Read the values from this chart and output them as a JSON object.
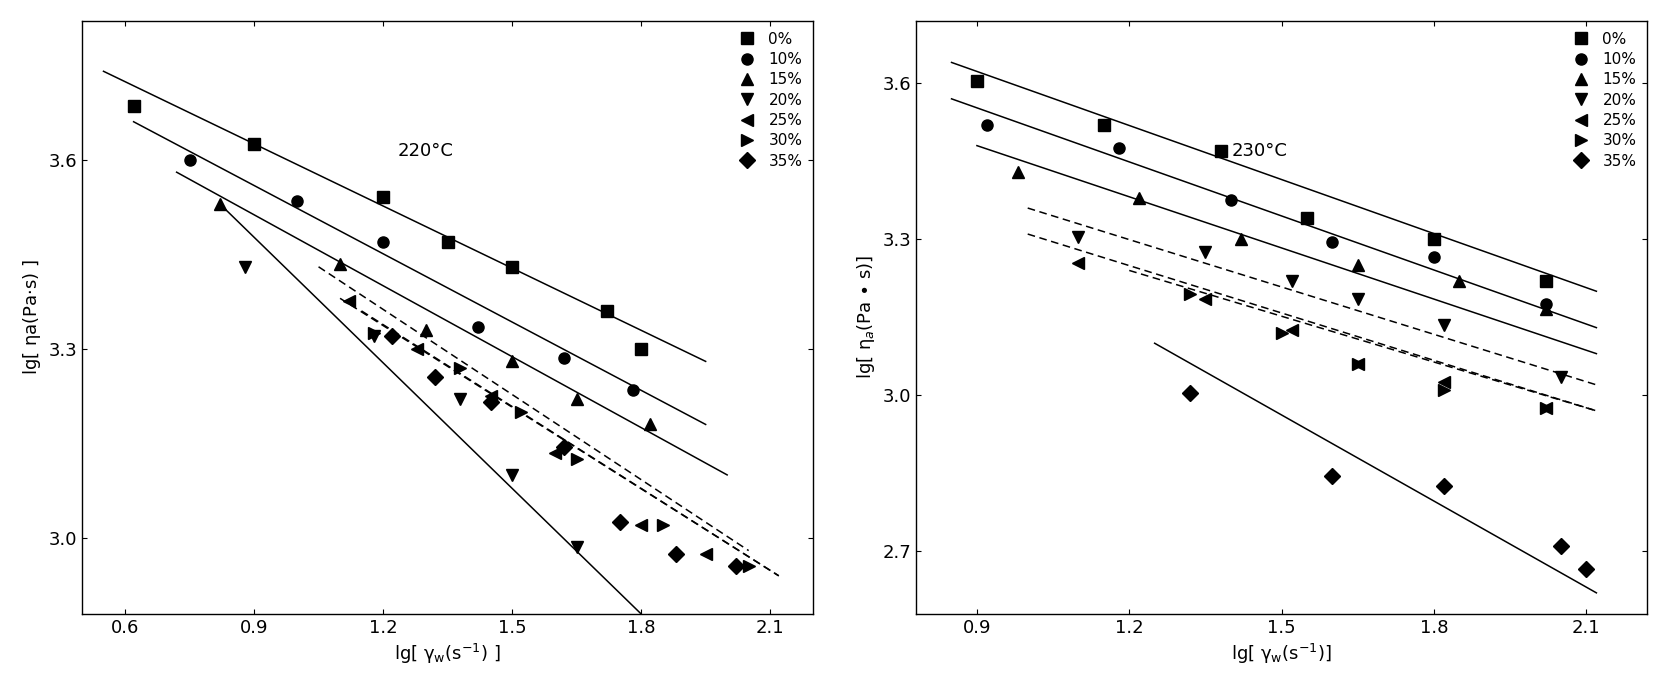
{
  "plot1": {
    "title": "220°C",
    "xlabel": "lg[ γw(s⁻¹) ]",
    "ylabel": "lg[ ηa(Pa·s) ]",
    "xlim": [
      0.5,
      2.2
    ],
    "ylim": [
      2.88,
      3.82
    ],
    "xticks": [
      0.6,
      0.9,
      1.2,
      1.5,
      1.8,
      2.1
    ],
    "yticks": [
      3.0,
      3.3,
      3.6
    ],
    "series": [
      {
        "label": "0%",
        "marker": "s",
        "points": [
          [
            0.62,
            3.685
          ],
          [
            0.9,
            3.625
          ],
          [
            1.2,
            3.54
          ],
          [
            1.35,
            3.47
          ],
          [
            1.5,
            3.43
          ],
          [
            1.72,
            3.36
          ],
          [
            1.8,
            3.3
          ]
        ],
        "line_x": [
          0.55,
          1.95
        ],
        "line_y": [
          3.74,
          3.28
        ],
        "linestyle": "solid"
      },
      {
        "label": "10%",
        "marker": "o",
        "points": [
          [
            0.75,
            3.6
          ],
          [
            1.0,
            3.535
          ],
          [
            1.2,
            3.47
          ],
          [
            1.42,
            3.335
          ],
          [
            1.62,
            3.285
          ],
          [
            1.78,
            3.235
          ]
        ],
        "line_x": [
          0.62,
          1.95
        ],
        "line_y": [
          3.66,
          3.18
        ],
        "linestyle": "solid"
      },
      {
        "label": "15%",
        "marker": "^",
        "points": [
          [
            0.82,
            3.53
          ],
          [
            1.1,
            3.435
          ],
          [
            1.3,
            3.33
          ],
          [
            1.5,
            3.28
          ],
          [
            1.65,
            3.22
          ],
          [
            1.82,
            3.18
          ]
        ],
        "line_x": [
          0.72,
          2.0
        ],
        "line_y": [
          3.58,
          3.1
        ],
        "linestyle": "solid"
      },
      {
        "label": "20%",
        "marker": "v",
        "points": [
          [
            0.88,
            3.43
          ],
          [
            1.18,
            3.32
          ],
          [
            1.38,
            3.22
          ],
          [
            1.5,
            3.1
          ],
          [
            1.65,
            2.985
          ],
          [
            1.85,
            2.82
          ]
        ],
        "line_x": [
          0.82,
          1.95
        ],
        "line_y": [
          3.53,
          2.78
        ],
        "linestyle": "solid"
      },
      {
        "label": "25%",
        "marker": "<",
        "points": [
          [
            1.12,
            3.375
          ],
          [
            1.28,
            3.3
          ],
          [
            1.45,
            3.225
          ],
          [
            1.6,
            3.135
          ],
          [
            1.8,
            3.02
          ],
          [
            1.95,
            2.975
          ]
        ],
        "line_x": [
          1.05,
          2.05
        ],
        "line_y": [
          3.43,
          2.98
        ],
        "linestyle": "dotted"
      },
      {
        "label": "30%",
        "marker": ">",
        "points": [
          [
            1.18,
            3.325
          ],
          [
            1.38,
            3.27
          ],
          [
            1.52,
            3.2
          ],
          [
            1.65,
            3.125
          ],
          [
            1.85,
            3.02
          ],
          [
            2.05,
            2.955
          ]
        ],
        "line_x": [
          1.1,
          2.12
        ],
        "line_y": [
          3.38,
          2.94
        ],
        "linestyle": "dotted"
      },
      {
        "label": "35%",
        "marker": "D",
        "points": [
          [
            1.22,
            3.32
          ],
          [
            1.32,
            3.255
          ],
          [
            1.45,
            3.215
          ],
          [
            1.62,
            3.145
          ],
          [
            1.75,
            3.025
          ],
          [
            1.88,
            2.975
          ],
          [
            2.02,
            2.955
          ]
        ],
        "line_x": [
          1.15,
          2.12
        ],
        "line_y": [
          3.36,
          2.94
        ],
        "linestyle": "dotted"
      }
    ]
  },
  "plot2": {
    "title": "230°C",
    "xlabel": "lg[ γw(s⁻¹)]",
    "ylabel": "lg[ ηa(Pa • s)]",
    "xlim": [
      0.78,
      2.22
    ],
    "ylim": [
      2.58,
      3.72
    ],
    "xticks": [
      0.9,
      1.2,
      1.5,
      1.8,
      2.1
    ],
    "yticks": [
      2.7,
      3.0,
      3.3,
      3.6
    ],
    "series": [
      {
        "label": "0%",
        "marker": "s",
        "points": [
          [
            0.9,
            3.605
          ],
          [
            1.15,
            3.52
          ],
          [
            1.38,
            3.47
          ],
          [
            1.55,
            3.34
          ],
          [
            1.8,
            3.3
          ],
          [
            2.02,
            3.22
          ]
        ],
        "line_x": [
          0.85,
          2.12
        ],
        "line_y": [
          3.64,
          3.2
        ],
        "linestyle": "solid"
      },
      {
        "label": "10%",
        "marker": "o",
        "points": [
          [
            0.92,
            3.52
          ],
          [
            1.18,
            3.475
          ],
          [
            1.4,
            3.375
          ],
          [
            1.6,
            3.295
          ],
          [
            1.8,
            3.265
          ],
          [
            2.02,
            3.175
          ]
        ],
        "line_x": [
          0.85,
          2.12
        ],
        "line_y": [
          3.57,
          3.13
        ],
        "linestyle": "solid"
      },
      {
        "label": "15%",
        "marker": "^",
        "points": [
          [
            0.98,
            3.43
          ],
          [
            1.22,
            3.38
          ],
          [
            1.42,
            3.3
          ],
          [
            1.65,
            3.25
          ],
          [
            1.85,
            3.22
          ],
          [
            2.02,
            3.165
          ]
        ],
        "line_x": [
          0.9,
          2.12
        ],
        "line_y": [
          3.48,
          3.08
        ],
        "linestyle": "solid"
      },
      {
        "label": "20%",
        "marker": "v",
        "points": [
          [
            1.1,
            3.305
          ],
          [
            1.35,
            3.275
          ],
          [
            1.52,
            3.22
          ],
          [
            1.65,
            3.185
          ],
          [
            1.82,
            3.135
          ],
          [
            2.05,
            3.035
          ]
        ],
        "line_x": [
          1.0,
          2.12
        ],
        "line_y": [
          3.36,
          3.02
        ],
        "linestyle": "dotted"
      },
      {
        "label": "25%",
        "marker": "<",
        "points": [
          [
            1.1,
            3.255
          ],
          [
            1.35,
            3.185
          ],
          [
            1.52,
            3.125
          ],
          [
            1.65,
            3.06
          ],
          [
            1.82,
            3.025
          ],
          [
            2.02,
            2.975
          ]
        ],
        "line_x": [
          1.0,
          2.12
        ],
        "line_y": [
          3.31,
          2.97
        ],
        "linestyle": "dotted"
      },
      {
        "label": "30%",
        "marker": ">",
        "points": [
          [
            1.32,
            3.195
          ],
          [
            1.5,
            3.12
          ],
          [
            1.65,
            3.06
          ],
          [
            1.82,
            3.01
          ],
          [
            2.02,
            2.975
          ]
        ],
        "line_x": [
          1.2,
          2.12
        ],
        "line_y": [
          3.24,
          2.97
        ],
        "linestyle": "dotted"
      },
      {
        "label": "35%",
        "marker": "D",
        "points": [
          [
            1.32,
            3.005
          ],
          [
            1.6,
            2.845
          ],
          [
            1.82,
            2.825
          ],
          [
            2.05,
            2.71
          ],
          [
            2.1,
            2.665
          ]
        ],
        "line_x": [
          1.25,
          2.12
        ],
        "line_y": [
          3.1,
          2.62
        ],
        "linestyle": "solid"
      }
    ]
  },
  "marker_size": 8,
  "linewidth": 1.1,
  "font_size": 13,
  "title_font_size": 13,
  "legend_font_size": 11,
  "color": "black"
}
